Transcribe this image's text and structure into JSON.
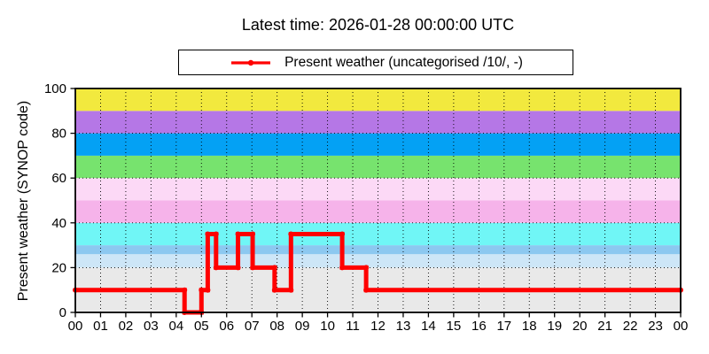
{
  "title": "Latest time: 2026-01-28 00:00:00 UTC",
  "legend": {
    "label": "Present weather (uncategorised /10/, -)",
    "line_color": "#ff0000",
    "marker": "dot"
  },
  "chart_data": {
    "type": "line",
    "subtype": "step-post",
    "title": "Latest time: 2026-01-28 00:00:00 UTC",
    "xlabel": "",
    "ylabel": "Present weather (SYNOP code)",
    "xlim": [
      0,
      24
    ],
    "ylim": [
      0,
      100
    ],
    "grid": "dotted",
    "legend_position": "top-center",
    "x_tick_labels": [
      "00",
      "01",
      "02",
      "03",
      "04",
      "05",
      "06",
      "07",
      "08",
      "09",
      "10",
      "11",
      "12",
      "13",
      "14",
      "15",
      "16",
      "17",
      "18",
      "19",
      "20",
      "21",
      "22",
      "23",
      "00"
    ],
    "y_ticks": [
      0,
      20,
      40,
      60,
      80,
      100
    ],
    "background_bands": [
      {
        "from": 0,
        "to": 20,
        "color": "#e9e9e9"
      },
      {
        "from": 20,
        "to": 26,
        "color": "#cde6f7"
      },
      {
        "from": 26,
        "to": 30,
        "color": "#8cc8f0"
      },
      {
        "from": 30,
        "to": 40,
        "color": "#70f6f6"
      },
      {
        "from": 40,
        "to": 50,
        "color": "#f6b3ea"
      },
      {
        "from": 50,
        "to": 60,
        "color": "#fcd9f6"
      },
      {
        "from": 60,
        "to": 70,
        "color": "#77e36e"
      },
      {
        "from": 70,
        "to": 80,
        "color": "#04a1f4"
      },
      {
        "from": 80,
        "to": 90,
        "color": "#b577e6"
      },
      {
        "from": 90,
        "to": 100,
        "color": "#f2e93e"
      }
    ],
    "series": [
      {
        "name": "Present weather (uncategorised /10/, -)",
        "color": "#ff0000",
        "line_width": 5,
        "marker": "dot",
        "steps": [
          {
            "start": 0.0,
            "end": 4.33,
            "value": 10
          },
          {
            "start": 4.33,
            "end": 5.0,
            "value": 0
          },
          {
            "start": 5.0,
            "end": 5.25,
            "value": 10
          },
          {
            "start": 5.25,
            "end": 5.58,
            "value": 35
          },
          {
            "start": 5.58,
            "end": 6.45,
            "value": 20
          },
          {
            "start": 6.45,
            "end": 7.03,
            "value": 35
          },
          {
            "start": 7.03,
            "end": 7.9,
            "value": 20
          },
          {
            "start": 7.9,
            "end": 8.55,
            "value": 10
          },
          {
            "start": 8.55,
            "end": 10.58,
            "value": 35
          },
          {
            "start": 10.58,
            "end": 11.53,
            "value": 20
          },
          {
            "start": 11.53,
            "end": 24.0,
            "value": 10
          }
        ]
      }
    ]
  }
}
